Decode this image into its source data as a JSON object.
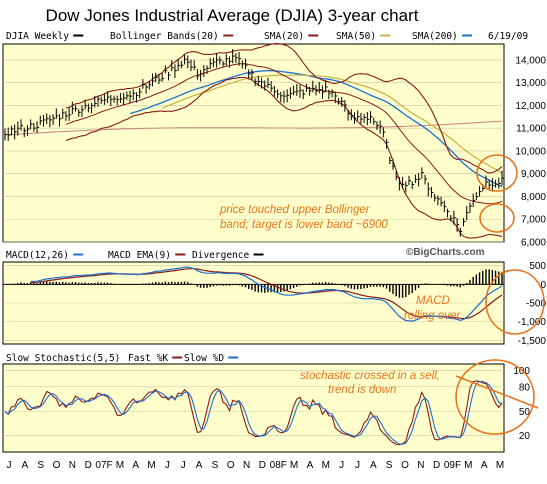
{
  "title": "Dow Jones Industrial Average (DJIA) 3-year chart",
  "colors": {
    "panel_bg": "#ffffcc",
    "grid": "#c8c8a8",
    "price": "#000000",
    "bollinger": "#8b1a1a",
    "sma20": "#8b1a1a",
    "sma50": "#c8b048",
    "sma200": "#1f6fd1",
    "sma_long": "#c8807a",
    "macd": "#1f6fd1",
    "macd_ema": "#8b1a1a",
    "divergence": "#000000",
    "stoch_fast": "#8b1a1a",
    "stoch_slow": "#1f6fd1",
    "annotation": "#e8741e"
  },
  "chart_data": [
    {
      "type": "line",
      "panel": "price",
      "legend": [
        {
          "label": "DJIA Weekly",
          "swatch": "#000000"
        },
        {
          "label": "Bollinger Bands(20)",
          "swatch": "#8b1a1a"
        },
        {
          "label": "SMA(20)",
          "swatch": "#8b1a1a"
        },
        {
          "label": "SMA(50)",
          "swatch": "#c8b048"
        },
        {
          "label": "SMA(200)",
          "swatch": "#1f6fd1"
        },
        {
          "label": "6/19/09",
          "swatch": ""
        }
      ],
      "yticks": [
        "14,000",
        "13,000",
        "12,000",
        "11,000",
        "10,000",
        "9,000",
        "8,000",
        "7,000",
        "6,000"
      ],
      "ytick_values": [
        14000,
        13000,
        12000,
        11000,
        10000,
        9000,
        8000,
        7000,
        6000
      ],
      "ylim": [
        6000,
        14700
      ],
      "x": [
        0,
        2,
        4,
        6,
        8,
        10,
        12,
        14,
        16,
        18,
        20,
        22,
        24,
        26,
        28,
        30,
        32,
        34,
        35
      ],
      "series": [
        {
          "name": "DJIA Weekly",
          "values": [
            10800,
            11300,
            11700,
            12100,
            12300,
            12500,
            12900,
            13600,
            13900,
            13900,
            13300,
            13800,
            14000,
            13600,
            12400,
            12600,
            12900,
            12800,
            12200
          ]
        },
        {
          "name": "SMA(50)",
          "values": [
            10900,
            11000,
            11200,
            11500,
            11800,
            12100,
            12400,
            12800,
            13200,
            13500,
            13600,
            13700,
            13800,
            13700,
            13500,
            13100,
            12800,
            12700,
            12600
          ]
        }
      ],
      "annotations": [
        {
          "text": "price touched upper Bollinger"
        },
        {
          "text": "band; target is lower band ~6900"
        }
      ],
      "watermark": "©BigCharts.com"
    },
    {
      "type": "line",
      "panel": "macd",
      "legend": [
        {
          "label": "MACD(12,26)",
          "swatch": "#1f6fd1"
        },
        {
          "label": "MACD EMA(9)",
          "swatch": "#8b1a1a"
        },
        {
          "label": "Divergence",
          "swatch": "#000000"
        }
      ],
      "yticks": [
        "500",
        "0",
        "-500",
        "-1,000",
        "-1,500"
      ],
      "ytick_values": [
        500,
        0,
        -500,
        -1000,
        -1500
      ],
      "ylim": [
        -1600,
        600
      ],
      "annotations": [
        {
          "text": "MACD"
        },
        {
          "text": "rolling over"
        }
      ]
    },
    {
      "type": "line",
      "panel": "stochastic",
      "legend": [
        {
          "label": "Slow Stochastic(5,5)",
          "swatch": ""
        },
        {
          "label": "Fast %K",
          "swatch": "#8b1a1a"
        },
        {
          "label": "Slow %D",
          "swatch": "#1f6fd1"
        }
      ],
      "yticks": [
        "100",
        "80",
        "50",
        "20"
      ],
      "ytick_values": [
        100,
        80,
        50,
        20
      ],
      "ylim": [
        0,
        108
      ],
      "annotations": [
        {
          "text": "stochastic crossed in a sell,"
        },
        {
          "text": "trend is down"
        }
      ]
    }
  ],
  "x_axis_labels": [
    "J",
    "A",
    "S",
    "O",
    "N",
    "D",
    "07F",
    "M",
    "A",
    "M",
    "J",
    "J",
    "A",
    "S",
    "O",
    "N",
    "D",
    "08F",
    "M",
    "A",
    "M",
    "J",
    "J",
    "A",
    "S",
    "O",
    "N",
    "D",
    "09F",
    "M",
    "A",
    "M"
  ]
}
